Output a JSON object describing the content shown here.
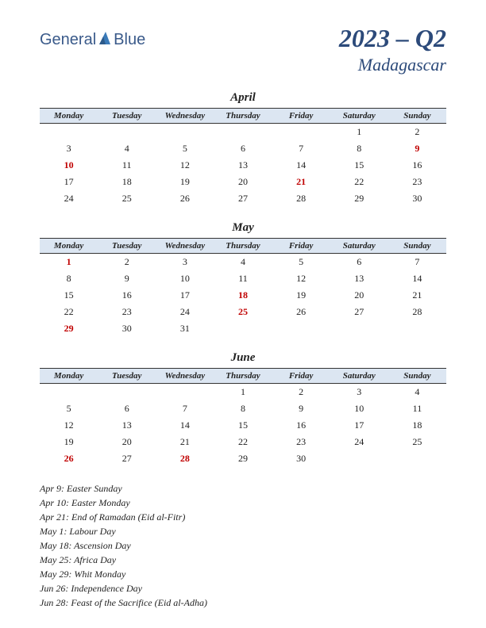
{
  "logo": {
    "text1": "General",
    "text2": "Blue"
  },
  "header": {
    "quarter": "2023 – Q2",
    "country": "Madagascar"
  },
  "colors": {
    "header_bg": "#dce6f2",
    "header_border": "#333333",
    "text": "#222222",
    "holiday": "#c00000",
    "title_color": "#2c4a7a",
    "logo_color": "#3a5a8a"
  },
  "daynames": [
    "Monday",
    "Tuesday",
    "Wednesday",
    "Thursday",
    "Friday",
    "Saturday",
    "Sunday"
  ],
  "months": [
    {
      "name": "April",
      "weeks": [
        [
          "",
          "",
          "",
          "",
          "",
          "1",
          "2"
        ],
        [
          "3",
          "4",
          "5",
          "6",
          "7",
          "8",
          "9"
        ],
        [
          "10",
          "11",
          "12",
          "13",
          "14",
          "15",
          "16"
        ],
        [
          "17",
          "18",
          "19",
          "20",
          "21",
          "22",
          "23"
        ],
        [
          "24",
          "25",
          "26",
          "27",
          "28",
          "29",
          "30"
        ]
      ],
      "holidays": [
        "9",
        "10",
        "21"
      ]
    },
    {
      "name": "May",
      "weeks": [
        [
          "1",
          "2",
          "3",
          "4",
          "5",
          "6",
          "7"
        ],
        [
          "8",
          "9",
          "10",
          "11",
          "12",
          "13",
          "14"
        ],
        [
          "15",
          "16",
          "17",
          "18",
          "19",
          "20",
          "21"
        ],
        [
          "22",
          "23",
          "24",
          "25",
          "26",
          "27",
          "28"
        ],
        [
          "29",
          "30",
          "31",
          "",
          "",
          "",
          ""
        ]
      ],
      "holidays": [
        "1",
        "18",
        "25",
        "29"
      ]
    },
    {
      "name": "June",
      "weeks": [
        [
          "",
          "",
          "",
          "1",
          "2",
          "3",
          "4"
        ],
        [
          "5",
          "6",
          "7",
          "8",
          "9",
          "10",
          "11"
        ],
        [
          "12",
          "13",
          "14",
          "15",
          "16",
          "17",
          "18"
        ],
        [
          "19",
          "20",
          "21",
          "22",
          "23",
          "24",
          "25"
        ],
        [
          "26",
          "27",
          "28",
          "29",
          "30",
          "",
          ""
        ]
      ],
      "holidays": [
        "26",
        "28"
      ]
    }
  ],
  "holiday_list": [
    "Apr 9: Easter Sunday",
    "Apr 10: Easter Monday",
    "Apr 21: End of Ramadan (Eid al-Fitr)",
    "May 1: Labour Day",
    "May 18: Ascension Day",
    "May 25: Africa Day",
    "May 29: Whit Monday",
    "Jun 26: Independence Day",
    "Jun 28: Feast of the Sacrifice (Eid al-Adha)"
  ]
}
